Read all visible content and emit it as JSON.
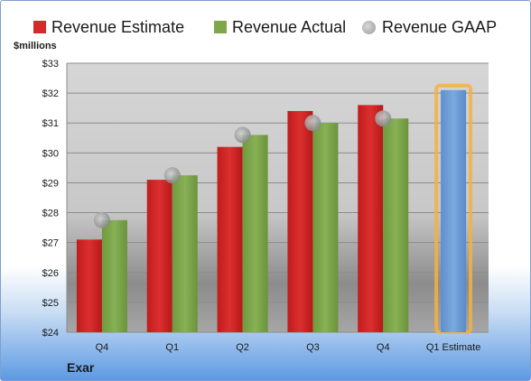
{
  "legend": {
    "items": [
      {
        "label": "Revenue Estimate",
        "color": "#d42a2a",
        "shape": "square"
      },
      {
        "label": "Revenue Actual",
        "color": "#7fa64a",
        "shape": "square"
      },
      {
        "label": "Revenue GAAP",
        "color": "#b0b0b0",
        "shape": "circle"
      }
    ]
  },
  "unit_label": "$millions",
  "company": "Exar",
  "colors": {
    "estimate": "#d42a2a",
    "actual": "#7fa64a",
    "gaap": "#a8a8a8",
    "forecast_bar": "#6f9fd8",
    "forecast_glow": "#f5b041"
  },
  "chart_data": {
    "type": "bar",
    "categories": [
      "Q4",
      "Q1",
      "Q2",
      "Q3",
      "Q4",
      "Q1 Estimate"
    ],
    "series": [
      {
        "name": "Revenue Estimate",
        "values": [
          27.1,
          29.1,
          30.2,
          31.4,
          31.6,
          32.1
        ]
      },
      {
        "name": "Revenue Actual",
        "values": [
          27.75,
          29.25,
          30.6,
          31.0,
          31.15,
          null
        ]
      },
      {
        "name": "Revenue GAAP",
        "values": [
          27.75,
          29.25,
          30.6,
          31.0,
          31.15,
          null
        ]
      }
    ],
    "ylim": [
      24,
      33
    ],
    "yticks": [
      "$24",
      "$25",
      "$26",
      "$27",
      "$28",
      "$29",
      "$30",
      "$31",
      "$32",
      "$33"
    ],
    "grid": true,
    "legend_position": "top"
  }
}
